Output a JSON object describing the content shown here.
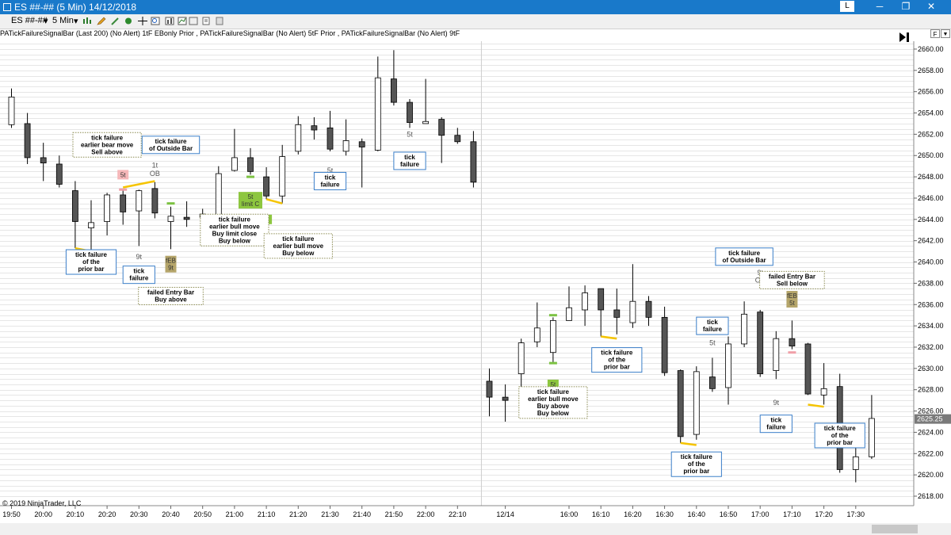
{
  "window": {
    "title": "ES ##-## (5 Min)  14/12/2018",
    "layout_button": "L",
    "minimize_glyph": "─",
    "maximize_glyph": "❐",
    "close_glyph": "✕"
  },
  "toolbar": {
    "instrument": "ES ##-##",
    "interval": "5 Min",
    "dropdown_glyph": "▾"
  },
  "indicator_line": "PATickFailureSignalBar (Last 200) (No Alert)   1tF  EBonly  Prior  , PATickFailureSignalBar (No Alert)   5tF  Prior  , PATickFailureSignalBar (No Alert)   9tF",
  "right_buttons": {
    "f": "F",
    "dropdown": "▼"
  },
  "footer": "© 2019 NinjaTrader, LLC",
  "price_axis": {
    "min": 2617.0,
    "max": 2661.5,
    "labels": [
      "2660.00",
      "2658.00",
      "2656.00",
      "2654.00",
      "2652.00",
      "2650.00",
      "2648.00",
      "2646.00",
      "2644.00",
      "2642.00",
      "2640.00",
      "2638.00",
      "2636.00",
      "2634.00",
      "2632.00",
      "2630.00",
      "2628.00",
      "2626.00",
      "2624.00",
      "2622.00",
      "2620.00",
      "2618.00"
    ],
    "current_price": "2625.25"
  },
  "time_axis": {
    "labels": [
      {
        "label": "19:50",
        "slot": 0
      },
      {
        "label": "20:00",
        "slot": 2
      },
      {
        "label": "20:10",
        "slot": 4
      },
      {
        "label": "20:20",
        "slot": 6
      },
      {
        "label": "20:30",
        "slot": 8
      },
      {
        "label": "20:40",
        "slot": 10
      },
      {
        "label": "20:50",
        "slot": 12
      },
      {
        "label": "21:00",
        "slot": 14
      },
      {
        "label": "21:10",
        "slot": 16
      },
      {
        "label": "21:20",
        "slot": 18
      },
      {
        "label": "21:30",
        "slot": 20
      },
      {
        "label": "21:40",
        "slot": 22
      },
      {
        "label": "21:50",
        "slot": 24
      },
      {
        "label": "22:00",
        "slot": 26
      },
      {
        "label": "22:10",
        "slot": 28
      },
      {
        "label": "12/14",
        "slot": 31
      },
      {
        "label": "16:00",
        "slot": 35
      },
      {
        "label": "16:10",
        "slot": 37
      },
      {
        "label": "16:20",
        "slot": 39
      },
      {
        "label": "16:30",
        "slot": 41
      },
      {
        "label": "16:40",
        "slot": 43
      },
      {
        "label": "16:50",
        "slot": 45
      },
      {
        "label": "17:00",
        "slot": 47
      },
      {
        "label": "17:10",
        "slot": 49
      },
      {
        "label": "17:20",
        "slot": 51
      },
      {
        "label": "17:30",
        "slot": 53
      }
    ],
    "session_break_slot": 29
  },
  "candles": [
    {
      "s": 0,
      "o": 2652.9,
      "h": 2656.3,
      "c": 2655.5,
      "l": 2652.6
    },
    {
      "s": 1,
      "o": 2653.0,
      "h": 2654.0,
      "c": 2649.8,
      "l": 2649.2
    },
    {
      "s": 2,
      "o": 2649.8,
      "h": 2651.2,
      "c": 2649.3,
      "l": 2647.6
    },
    {
      "s": 3,
      "o": 2649.2,
      "h": 2650.0,
      "c": 2647.3,
      "l": 2647.0
    },
    {
      "s": 4,
      "o": 2646.7,
      "h": 2647.6,
      "c": 2643.8,
      "l": 2641.3
    },
    {
      "s": 5,
      "o": 2643.2,
      "h": 2645.8,
      "c": 2643.7,
      "l": 2641.1
    },
    {
      "s": 6,
      "o": 2643.8,
      "h": 2646.5,
      "c": 2646.3,
      "l": 2642.5
    },
    {
      "s": 7,
      "o": 2646.3,
      "h": 2646.8,
      "c": 2644.7,
      "l": 2643.5
    },
    {
      "s": 8,
      "o": 2644.8,
      "h": 2646.8,
      "c": 2646.7,
      "l": 2641.5
    },
    {
      "s": 9,
      "o": 2646.9,
      "h": 2647.5,
      "c": 2644.6,
      "l": 2644.1
    },
    {
      "s": 10,
      "o": 2643.8,
      "h": 2645.2,
      "c": 2644.3,
      "l": 2641.2
    },
    {
      "s": 11,
      "o": 2644.2,
      "h": 2645.7,
      "c": 2644.0,
      "l": 2643.3
    },
    {
      "s": 12,
      "o": 2644.2,
      "h": 2645.0,
      "c": 2644.5,
      "l": 2643.8
    },
    {
      "s": 13,
      "o": 2644.4,
      "h": 2649.0,
      "c": 2648.3,
      "l": 2644.1
    },
    {
      "s": 14,
      "o": 2648.6,
      "h": 2652.5,
      "c": 2649.8,
      "l": 2648.5
    },
    {
      "s": 15,
      "o": 2649.8,
      "h": 2650.7,
      "c": 2648.5,
      "l": 2648.2
    },
    {
      "s": 16,
      "o": 2648.0,
      "h": 2648.9,
      "c": 2646.2,
      "l": 2645.9
    },
    {
      "s": 17,
      "o": 2646.2,
      "h": 2651.0,
      "c": 2649.9,
      "l": 2645.5
    },
    {
      "s": 18,
      "o": 2650.4,
      "h": 2653.7,
      "c": 2652.9,
      "l": 2650.1
    },
    {
      "s": 19,
      "o": 2652.8,
      "h": 2653.6,
      "c": 2652.4,
      "l": 2651.5
    },
    {
      "s": 20,
      "o": 2652.6,
      "h": 2654.2,
      "c": 2650.6,
      "l": 2650.4
    },
    {
      "s": 21,
      "o": 2650.4,
      "h": 2653.4,
      "c": 2651.4,
      "l": 2650.0
    },
    {
      "s": 22,
      "o": 2651.3,
      "h": 2651.6,
      "c": 2650.8,
      "l": 2647.0
    },
    {
      "s": 23,
      "o": 2650.5,
      "h": 2659.3,
      "c": 2657.3,
      "l": 2650.4
    },
    {
      "s": 24,
      "o": 2657.2,
      "h": 2659.9,
      "c": 2655.0,
      "l": 2654.7
    },
    {
      "s": 25,
      "o": 2655.0,
      "h": 2655.3,
      "c": 2653.1,
      "l": 2652.6
    },
    {
      "s": 26,
      "o": 2653.0,
      "h": 2657.2,
      "c": 2653.2,
      "l": 2653.0
    },
    {
      "s": 27,
      "o": 2653.4,
      "h": 2653.6,
      "c": 2651.9,
      "l": 2649.3
    },
    {
      "s": 28,
      "o": 2651.9,
      "h": 2652.6,
      "c": 2651.3,
      "l": 2651.1
    },
    {
      "s": 29,
      "o": 2651.3,
      "h": 2652.3,
      "c": 2647.5,
      "l": 2647.0
    },
    {
      "s": 30,
      "o": 2628.8,
      "h": 2630.0,
      "c": 2627.3,
      "l": 2625.5
    },
    {
      "s": 31,
      "o": 2627.3,
      "h": 2628.5,
      "c": 2627.0,
      "l": 2625.0
    },
    {
      "s": 32,
      "o": 2629.5,
      "h": 2632.8,
      "c": 2632.4,
      "l": 2627.5
    },
    {
      "s": 33,
      "o": 2632.5,
      "h": 2636.2,
      "c": 2633.8,
      "l": 2632.0
    },
    {
      "s": 34,
      "o": 2631.5,
      "h": 2634.8,
      "c": 2634.5,
      "l": 2630.5
    },
    {
      "s": 35,
      "o": 2634.5,
      "h": 2637.7,
      "c": 2635.7,
      "l": 2634.5
    },
    {
      "s": 36,
      "o": 2635.5,
      "h": 2637.8,
      "c": 2637.1,
      "l": 2634.0
    },
    {
      "s": 37,
      "o": 2637.5,
      "h": 2637.5,
      "c": 2635.5,
      "l": 2633.0
    },
    {
      "s": 38,
      "o": 2635.5,
      "h": 2637.5,
      "c": 2634.8,
      "l": 2633.2
    },
    {
      "s": 39,
      "o": 2634.3,
      "h": 2639.8,
      "c": 2636.3,
      "l": 2633.8
    },
    {
      "s": 40,
      "o": 2636.3,
      "h": 2636.8,
      "c": 2634.8,
      "l": 2634.0
    },
    {
      "s": 41,
      "o": 2634.8,
      "h": 2635.8,
      "c": 2629.6,
      "l": 2629.3
    },
    {
      "s": 42,
      "o": 2629.8,
      "h": 2629.9,
      "c": 2623.6,
      "l": 2623.0
    },
    {
      "s": 43,
      "o": 2623.8,
      "h": 2630.2,
      "c": 2629.7,
      "l": 2623.3
    },
    {
      "s": 44,
      "o": 2629.2,
      "h": 2631.0,
      "c": 2628.1,
      "l": 2627.8
    },
    {
      "s": 45,
      "o": 2628.2,
      "h": 2633.0,
      "c": 2632.3,
      "l": 2626.6
    },
    {
      "s": 46,
      "o": 2632.3,
      "h": 2636.3,
      "c": 2635.1,
      "l": 2632.0
    },
    {
      "s": 47,
      "o": 2635.3,
      "h": 2635.5,
      "c": 2629.5,
      "l": 2629.2
    },
    {
      "s": 48,
      "o": 2629.8,
      "h": 2633.5,
      "c": 2632.8,
      "l": 2629.0
    },
    {
      "s": 49,
      "o": 2632.8,
      "h": 2634.5,
      "c": 2632.1,
      "l": 2631.8
    },
    {
      "s": 50,
      "o": 2632.3,
      "h": 2632.4,
      "c": 2627.6,
      "l": 2627.5
    },
    {
      "s": 51,
      "o": 2627.5,
      "h": 2630.5,
      "c": 2628.1,
      "l": 2626.6
    },
    {
      "s": 52,
      "o": 2628.3,
      "h": 2629.5,
      "c": 2620.5,
      "l": 2620.2
    },
    {
      "s": 53,
      "o": 2620.5,
      "h": 2624.3,
      "c": 2621.7,
      "l": 2619.3
    },
    {
      "s": 54,
      "o": 2621.7,
      "h": 2627.5,
      "c": 2625.3,
      "l": 2621.5
    }
  ],
  "marks": [
    {
      "type": "yellow",
      "s0": 4,
      "s1": 5,
      "p0": 2641.3,
      "p1": 2641.0
    },
    {
      "type": "yellow",
      "s0": 7,
      "s1": 9,
      "p0": 2647.0,
      "p1": 2647.6
    },
    {
      "type": "yellow",
      "s0": 16,
      "s1": 17,
      "p0": 2645.9,
      "p1": 2645.5
    },
    {
      "type": "yellow",
      "s0": 37,
      "s1": 38,
      "p0": 2633.0,
      "p1": 2632.8
    },
    {
      "type": "yellow",
      "s0": 42,
      "s1": 43,
      "p0": 2623.0,
      "p1": 2622.8
    },
    {
      "type": "yellow",
      "s0": 50,
      "s1": 51,
      "p0": 2626.6,
      "p1": 2626.4
    },
    {
      "type": "green",
      "s": 15,
      "p": 2648.0
    },
    {
      "type": "green",
      "s": 10,
      "p": 2645.5
    },
    {
      "type": "green",
      "s": 34,
      "p": 2635.0
    },
    {
      "type": "green",
      "s": 34,
      "p": 2630.5
    },
    {
      "type": "pink",
      "s": 7,
      "p": 2646.8
    },
    {
      "type": "pink",
      "s": 49,
      "p": 2631.5
    }
  ],
  "tags": [
    {
      "text": "5t",
      "s": 7,
      "p": 2648.2,
      "kind": "pink"
    },
    {
      "text": "5t\nlimit C",
      "s": 15,
      "p": 2645.8,
      "kind": "green"
    },
    {
      "text": "9t",
      "s": 16,
      "p": 2644.0,
      "kind": "green"
    },
    {
      "text": "fEB\n9t",
      "s": 10,
      "p": 2639.8,
      "kind": "olive"
    },
    {
      "text": "5t",
      "s": 34,
      "p": 2628.5,
      "kind": "green"
    },
    {
      "text": "fEB\n5t",
      "s": 49,
      "p": 2636.5,
      "kind": "olive"
    }
  ],
  "plain_labels": [
    {
      "text": "1t",
      "s": 9,
      "p": 2649.1
    },
    {
      "text": "OB",
      "s": 9,
      "p": 2648.3
    },
    {
      "text": "9t",
      "s": 8,
      "p": 2640.5
    },
    {
      "text": "5t",
      "s": 20,
      "p": 2648.6
    },
    {
      "text": "5t",
      "s": 25,
      "p": 2652.0
    },
    {
      "text": "5t",
      "s": 44,
      "p": 2632.4
    },
    {
      "text": "9t",
      "s": 47,
      "p": 2639.0
    },
    {
      "text": "OB",
      "s": 47,
      "p": 2638.3
    },
    {
      "text": "9t",
      "s": 48,
      "p": 2626.8
    }
  ],
  "boxes": [
    {
      "lines": [
        "tick failure",
        "earlier bear move",
        "Sell above"
      ],
      "s": 6,
      "p": 2651.0,
      "style": "dotted"
    },
    {
      "lines": [
        "tick failure",
        "of Outside Bar"
      ],
      "s": 10,
      "p": 2651.0,
      "style": "solid"
    },
    {
      "lines": [
        "tick failure",
        "of the",
        "prior bar"
      ],
      "s": 5,
      "p": 2640.0,
      "style": "solid"
    },
    {
      "lines": [
        "tick",
        "failure"
      ],
      "s": 8,
      "p": 2638.8,
      "style": "solid"
    },
    {
      "lines": [
        "failed Entry Bar",
        "Buy above"
      ],
      "s": 10,
      "p": 2636.8,
      "style": "dotted"
    },
    {
      "lines": [
        "tick failure",
        "earlier bull move",
        "Buy limit close",
        "Buy below"
      ],
      "s": 14,
      "p": 2643.0,
      "style": "dotted"
    },
    {
      "lines": [
        "tick failure",
        "earlier bull move",
        "Buy below"
      ],
      "s": 18,
      "p": 2641.5,
      "style": "dotted"
    },
    {
      "lines": [
        "tick",
        "failure"
      ],
      "s": 20,
      "p": 2647.6,
      "style": "solid"
    },
    {
      "lines": [
        "tick",
        "failure"
      ],
      "s": 25,
      "p": 2649.5,
      "style": "solid"
    },
    {
      "lines": [
        "tick failure",
        "of Outside Bar"
      ],
      "s": 46,
      "p": 2640.5,
      "style": "solid"
    },
    {
      "lines": [
        "failed Entry Bar",
        "Sell below"
      ],
      "s": 49,
      "p": 2638.3,
      "style": "dotted"
    },
    {
      "lines": [
        "tick",
        "failure"
      ],
      "s": 44,
      "p": 2634.0,
      "style": "solid"
    },
    {
      "lines": [
        "tick failure",
        "of the",
        "prior bar"
      ],
      "s": 38,
      "p": 2630.8,
      "style": "solid"
    },
    {
      "lines": [
        "tick failure",
        "earlier bull move",
        "Buy above",
        "Buy below"
      ],
      "s": 34,
      "p": 2626.8,
      "style": "dotted"
    },
    {
      "lines": [
        "tick failure",
        "of the",
        "prior bar"
      ],
      "s": 43,
      "p": 2621.0,
      "style": "solid"
    },
    {
      "lines": [
        "tick",
        "failure"
      ],
      "s": 48,
      "p": 2624.8,
      "style": "solid"
    },
    {
      "lines": [
        "tick failure",
        "of the",
        "prior bar"
      ],
      "s": 52,
      "p": 2623.7,
      "style": "solid"
    }
  ]
}
